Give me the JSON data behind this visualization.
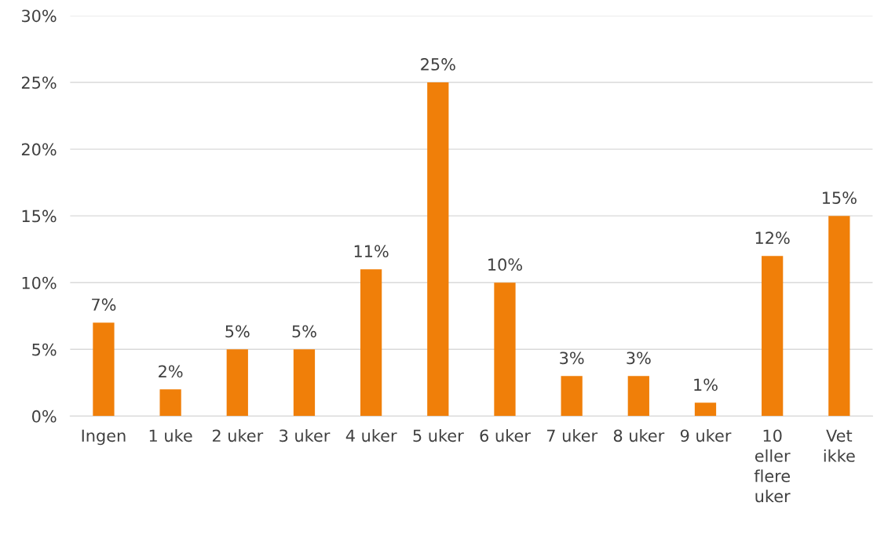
{
  "chart_data": {
    "type": "bar",
    "categories": [
      "Ingen",
      "1 uke",
      "2 uker",
      "3 uker",
      "4 uker",
      "5 uker",
      "6 uker",
      "7 uker",
      "8 uker",
      "9 uker",
      "10 eller flere uker",
      "Vet ikke"
    ],
    "values": [
      7,
      2,
      5,
      5,
      11,
      25,
      10,
      3,
      3,
      1,
      12,
      15
    ],
    "value_labels": [
      "7%",
      "2%",
      "5%",
      "5%",
      "11%",
      "25%",
      "10%",
      "3%",
      "3%",
      "1%",
      "12%",
      "15%"
    ],
    "color": "#f07f09",
    "ylim": [
      0,
      30
    ],
    "yticks": [
      {
        "value": 0,
        "label": "0%"
      },
      {
        "value": 5,
        "label": "5%"
      },
      {
        "value": 10,
        "label": "10%"
      },
      {
        "value": 15,
        "label": "15%"
      },
      {
        "value": 20,
        "label": "20%"
      },
      {
        "value": 25,
        "label": "25%"
      },
      {
        "value": 30,
        "label": "30%"
      }
    ],
    "grid": "y",
    "legend": false
  }
}
